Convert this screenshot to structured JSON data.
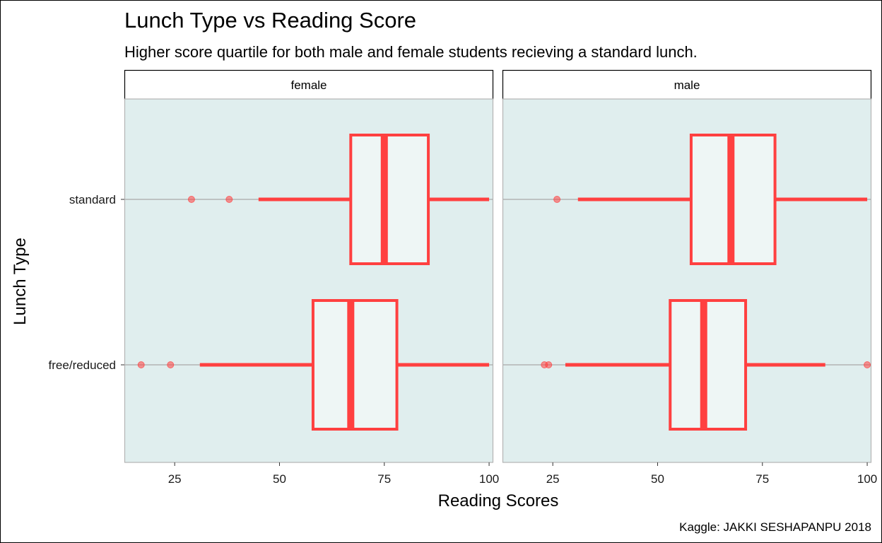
{
  "chart_data": {
    "type": "boxplot",
    "orientation": "horizontal",
    "title": "Lunch Type vs Reading Score",
    "subtitle": "Higher score quartile for both male and female students recieving a standard lunch.",
    "xlabel": "Reading Scores",
    "ylabel": "Lunch Type",
    "caption": "Kaggle: JAKKI SESHAPANPU 2018",
    "xlim": [
      13,
      101
    ],
    "x_ticks": [
      25,
      50,
      75,
      100
    ],
    "categories": [
      "standard",
      "free/reduced"
    ],
    "grid": "horizontal only",
    "box_color": "#ff4040",
    "panel_background": "#e0eeee",
    "box_fill": "#eef6f5",
    "panels": [
      {
        "facet": "female",
        "boxes": [
          {
            "category": "standard",
            "whisker_low": 45,
            "q1": 67,
            "median": 75,
            "q3": 85.5,
            "whisker_high": 100,
            "outliers": [
              29,
              38
            ]
          },
          {
            "category": "free/reduced",
            "whisker_low": 31,
            "q1": 58,
            "median": 67,
            "q3": 78,
            "whisker_high": 100,
            "outliers": [
              17,
              24
            ]
          }
        ]
      },
      {
        "facet": "male",
        "boxes": [
          {
            "category": "standard",
            "whisker_low": 31,
            "q1": 58,
            "median": 67.5,
            "q3": 78,
            "whisker_high": 100,
            "outliers": [
              26
            ]
          },
          {
            "category": "free/reduced",
            "whisker_low": 28,
            "q1": 53,
            "median": 61,
            "q3": 71,
            "whisker_high": 90,
            "outliers": [
              23,
              24,
              100
            ]
          }
        ]
      }
    ]
  }
}
